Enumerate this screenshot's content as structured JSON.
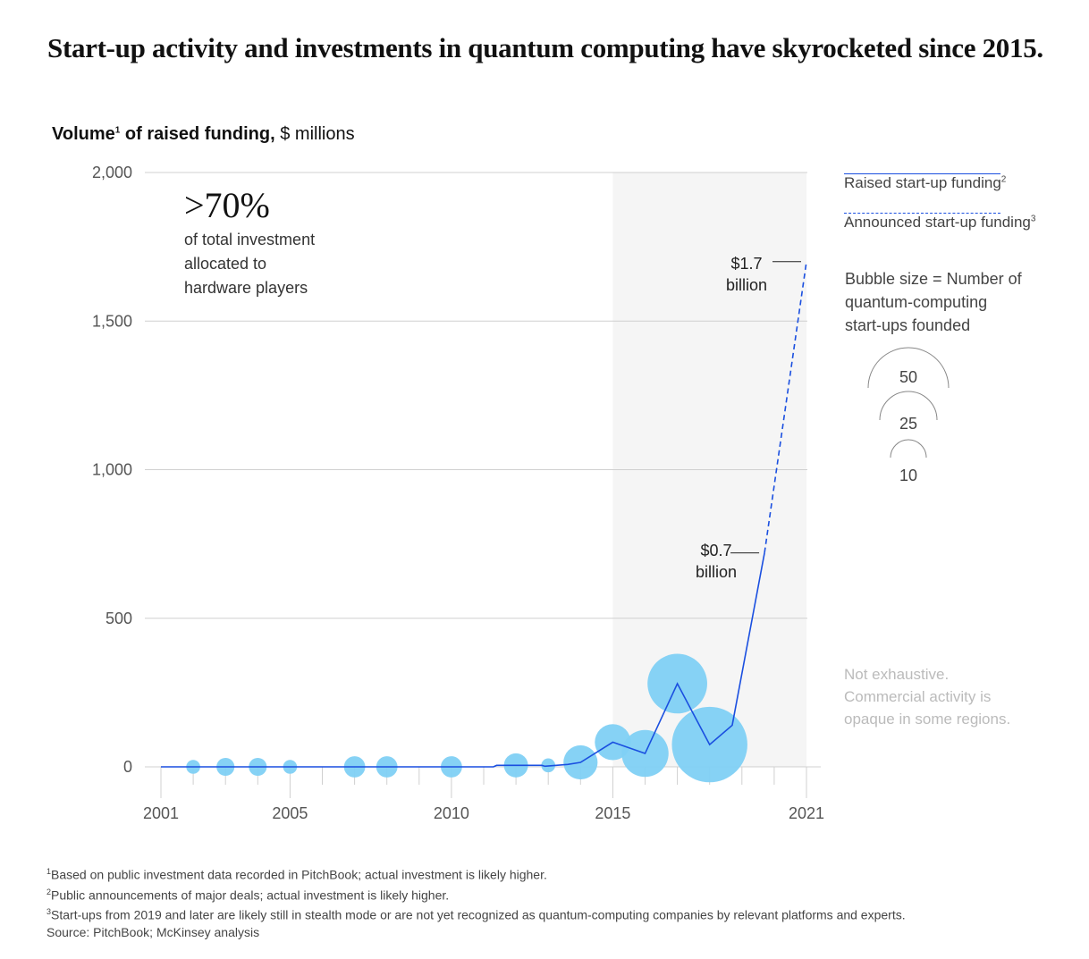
{
  "header": {
    "title": "Start-up activity and investments in quantum computing have skyrocketed since 2015.",
    "subtitle_bold": "Volume",
    "subtitle_sup": "1",
    "subtitle_bold2": " of raised funding,",
    "subtitle_unit": " $ millions"
  },
  "callout": {
    "value": ">70%",
    "lines": [
      "of total investment",
      "allocated to",
      "hardware players"
    ]
  },
  "legend": {
    "raised": {
      "label": "Raised start-up funding",
      "sup": "2"
    },
    "announced": {
      "label": "Announced start-up funding",
      "sup": "3"
    },
    "bubble_note": [
      "Bubble size = Number of",
      "quantum-computing",
      "start-ups founded"
    ],
    "bubble_sizes": [
      50,
      25,
      10
    ]
  },
  "disclaimer": [
    "Not exhaustive.",
    "Commercial activity is",
    "opaque in some regions."
  ],
  "annotations": [
    {
      "value": "$1.7",
      "unit": "billion"
    },
    {
      "value": "$0.7",
      "unit": "billion"
    }
  ],
  "footnotes": [
    {
      "sup": "1",
      "text": "Based on public investment data recorded in PitchBook; actual investment is likely higher."
    },
    {
      "sup": "2",
      "text": "Public announcements of major deals; actual investment is likely higher."
    },
    {
      "sup": "3",
      "text": "Start-ups from 2019 and later are likely still in stealth mode or are not yet recognized as quantum-computing companies by relevant platforms and experts."
    },
    {
      "sup": "",
      "text": " Source: PitchBook; McKinsey analysis"
    }
  ],
  "colors": {
    "line": "#1a4fe0",
    "bubble": "#7fd0f4",
    "highlight_band": "#f5f5f5",
    "grid": "#d0d0d0"
  },
  "chart_data": {
    "type": "line",
    "title": "Start-up activity and investments in quantum computing have skyrocketed since 2015.",
    "ylabel": "Volume of raised funding, $ millions",
    "xlabel": "",
    "xlim": [
      2001,
      2021
    ],
    "ylim": [
      0,
      2000
    ],
    "y_ticks": [
      0,
      500,
      1000,
      1500,
      2000
    ],
    "y_tick_labels": [
      "0",
      "500",
      "1,000",
      "1,500",
      "2,000"
    ],
    "x_tick_labels": [
      "2001",
      "2005",
      "2010",
      "2015",
      "2021"
    ],
    "x_ticks_labeled": [
      2001,
      2005,
      2010,
      2015,
      2021
    ],
    "x_ticks_minor": [
      2002,
      2003,
      2004,
      2006,
      2007,
      2008,
      2009,
      2011,
      2012,
      2013,
      2014,
      2016,
      2017,
      2018,
      2019,
      2020
    ],
    "highlight_range": [
      2015,
      2021
    ],
    "grid": true,
    "legend_position": "right",
    "series": [
      {
        "name": "Raised start-up funding",
        "style": "solid",
        "x": [
          2001,
          2011.3,
          2011.4,
          2012.8,
          2012.9,
          2013.6,
          2014,
          2015,
          2016,
          2017,
          2018,
          2018.7,
          2019.7
        ],
        "y": [
          0,
          0,
          5,
          5,
          2,
          8,
          15,
          83,
          45,
          280,
          75,
          140,
          720
        ]
      },
      {
        "name": "Announced start-up funding",
        "style": "dashed",
        "x": [
          2019.7,
          2021
        ],
        "y": [
          720,
          1700
        ]
      }
    ],
    "bubbles": {
      "name": "Number of quantum-computing start-ups founded",
      "x": [
        2002,
        2003,
        2004,
        2005,
        2007,
        2008,
        2010,
        2012,
        2013,
        2014,
        2015,
        2016,
        2017,
        2018
      ],
      "y": [
        0,
        0,
        0,
        0,
        0,
        0,
        0,
        5,
        5,
        15,
        83,
        45,
        280,
        75
      ],
      "size": [
        3,
        5,
        5,
        3,
        7,
        7,
        7,
        9,
        3,
        18,
        20,
        34,
        55,
        88
      ]
    },
    "annotations": [
      {
        "x": 2021,
        "y": 1700,
        "text": "$1.7 billion"
      },
      {
        "x": 2019.7,
        "y": 720,
        "text": "$0.7 billion"
      }
    ]
  }
}
